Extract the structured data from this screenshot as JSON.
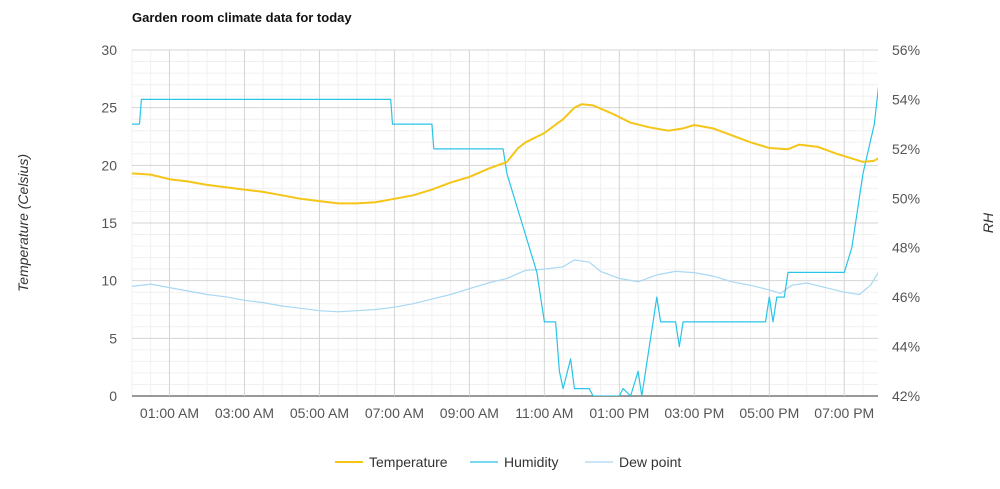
{
  "chart_data": {
    "type": "line",
    "title": "Garden room climate data for today",
    "ylabel": "Temperature (Celsius)",
    "y2label": "RH",
    "ylim": [
      0,
      30
    ],
    "y2lim": [
      42,
      56
    ],
    "xlim": [
      0.0,
      19.9
    ],
    "left_ticks": [
      "0",
      "5",
      "10",
      "15",
      "20",
      "25",
      "30"
    ],
    "right_ticks": [
      "42%",
      "44%",
      "46%",
      "48%",
      "50%",
      "52%",
      "54%",
      "56%"
    ],
    "x_ticks": [
      {
        "value": 1,
        "label": "01:00 AM"
      },
      {
        "value": 3,
        "label": "03:00 AM"
      },
      {
        "value": 5,
        "label": "05:00 AM"
      },
      {
        "value": 7,
        "label": "07:00 AM"
      },
      {
        "value": 9,
        "label": "09:00 AM"
      },
      {
        "value": 11,
        "label": "11:00 AM"
      },
      {
        "value": 13,
        "label": "01:00 PM"
      },
      {
        "value": 15,
        "label": "03:00 PM"
      },
      {
        "value": 17,
        "label": "05:00 PM"
      },
      {
        "value": 19,
        "label": "07:00 PM"
      }
    ],
    "grid": true,
    "legend_position": "bottom",
    "series": [
      {
        "name": "Temperature",
        "axis": "left",
        "color": "#f5c518",
        "points": [
          [
            0.0,
            19.3
          ],
          [
            0.5,
            19.2
          ],
          [
            1.0,
            18.8
          ],
          [
            1.5,
            18.6
          ],
          [
            2.0,
            18.3
          ],
          [
            2.5,
            18.1
          ],
          [
            3.0,
            17.9
          ],
          [
            3.5,
            17.7
          ],
          [
            4.0,
            17.4
          ],
          [
            4.5,
            17.1
          ],
          [
            5.0,
            16.9
          ],
          [
            5.5,
            16.7
          ],
          [
            6.0,
            16.7
          ],
          [
            6.5,
            16.8
          ],
          [
            7.0,
            17.1
          ],
          [
            7.5,
            17.4
          ],
          [
            8.0,
            17.9
          ],
          [
            8.5,
            18.5
          ],
          [
            9.0,
            19.0
          ],
          [
            9.5,
            19.7
          ],
          [
            10.0,
            20.3
          ],
          [
            10.3,
            21.5
          ],
          [
            10.5,
            22.0
          ],
          [
            11.0,
            22.8
          ],
          [
            11.5,
            24.0
          ],
          [
            11.8,
            25.0
          ],
          [
            12.0,
            25.3
          ],
          [
            12.3,
            25.2
          ],
          [
            12.8,
            24.5
          ],
          [
            13.3,
            23.7
          ],
          [
            13.8,
            23.3
          ],
          [
            14.3,
            23.0
          ],
          [
            14.7,
            23.2
          ],
          [
            15.0,
            23.5
          ],
          [
            15.5,
            23.2
          ],
          [
            16.0,
            22.6
          ],
          [
            16.5,
            22.0
          ],
          [
            17.0,
            21.5
          ],
          [
            17.5,
            21.4
          ],
          [
            17.8,
            21.8
          ],
          [
            18.3,
            21.6
          ],
          [
            18.8,
            21.0
          ],
          [
            19.2,
            20.6
          ],
          [
            19.5,
            20.3
          ],
          [
            19.8,
            20.4
          ],
          [
            20.0,
            20.8
          ],
          [
            20.5,
            20.8
          ]
        ]
      },
      {
        "name": "Humidity",
        "axis": "right",
        "color": "#29c4e8",
        "points": [
          [
            0.0,
            53.0
          ],
          [
            0.2,
            53.0
          ],
          [
            0.25,
            54.0
          ],
          [
            6.9,
            54.0
          ],
          [
            6.95,
            53.0
          ],
          [
            8.0,
            53.0
          ],
          [
            8.05,
            52.0
          ],
          [
            9.9,
            52.0
          ],
          [
            10.0,
            51.0
          ],
          [
            10.2,
            50.0
          ],
          [
            10.4,
            49.0
          ],
          [
            10.6,
            48.0
          ],
          [
            10.8,
            47.0
          ],
          [
            10.9,
            46.0
          ],
          [
            11.0,
            45.0
          ],
          [
            11.3,
            45.0
          ],
          [
            11.4,
            43.0
          ],
          [
            11.5,
            42.3
          ],
          [
            11.7,
            43.5
          ],
          [
            11.8,
            42.3
          ],
          [
            12.2,
            42.3
          ],
          [
            12.3,
            42.0
          ],
          [
            13.0,
            42.0
          ],
          [
            13.1,
            42.3
          ],
          [
            13.3,
            42.0
          ],
          [
            13.5,
            43.0
          ],
          [
            13.6,
            42.0
          ],
          [
            13.8,
            44.0
          ],
          [
            13.9,
            45.0
          ],
          [
            14.0,
            46.0
          ],
          [
            14.1,
            45.0
          ],
          [
            14.5,
            45.0
          ],
          [
            14.6,
            44.0
          ],
          [
            14.7,
            45.0
          ],
          [
            16.9,
            45.0
          ],
          [
            17.0,
            46.0
          ],
          [
            17.1,
            45.0
          ],
          [
            17.2,
            46.0
          ],
          [
            17.4,
            46.0
          ],
          [
            17.5,
            47.0
          ],
          [
            19.0,
            47.0
          ],
          [
            19.2,
            48.0
          ],
          [
            19.5,
            51.0
          ],
          [
            19.8,
            53.0
          ],
          [
            19.95,
            55.0
          ],
          [
            20.1,
            54.0
          ],
          [
            20.3,
            52.0
          ],
          [
            20.6,
            52.0
          ],
          [
            20.7,
            51.0
          ],
          [
            20.8,
            51.0
          ]
        ]
      },
      {
        "name": "Dew point",
        "axis": "left",
        "color": "#a8d8f4",
        "points": [
          [
            0.0,
            9.5
          ],
          [
            0.5,
            9.7
          ],
          [
            1.0,
            9.4
          ],
          [
            1.5,
            9.1
          ],
          [
            2.0,
            8.8
          ],
          [
            2.5,
            8.6
          ],
          [
            3.0,
            8.3
          ],
          [
            3.5,
            8.1
          ],
          [
            4.0,
            7.8
          ],
          [
            4.5,
            7.6
          ],
          [
            5.0,
            7.4
          ],
          [
            5.5,
            7.3
          ],
          [
            6.0,
            7.4
          ],
          [
            6.5,
            7.5
          ],
          [
            7.0,
            7.7
          ],
          [
            7.5,
            8.0
          ],
          [
            8.0,
            8.4
          ],
          [
            8.5,
            8.8
          ],
          [
            9.0,
            9.3
          ],
          [
            9.5,
            9.8
          ],
          [
            10.0,
            10.2
          ],
          [
            10.5,
            10.9
          ],
          [
            11.0,
            11.0
          ],
          [
            11.5,
            11.2
          ],
          [
            11.8,
            11.8
          ],
          [
            12.2,
            11.6
          ],
          [
            12.5,
            10.8
          ],
          [
            13.0,
            10.2
          ],
          [
            13.5,
            9.9
          ],
          [
            14.0,
            10.5
          ],
          [
            14.5,
            10.8
          ],
          [
            15.0,
            10.7
          ],
          [
            15.5,
            10.4
          ],
          [
            16.0,
            9.9
          ],
          [
            16.5,
            9.6
          ],
          [
            17.0,
            9.2
          ],
          [
            17.3,
            8.9
          ],
          [
            17.6,
            9.6
          ],
          [
            18.0,
            9.8
          ],
          [
            18.5,
            9.4
          ],
          [
            19.0,
            9.0
          ],
          [
            19.4,
            8.8
          ],
          [
            19.7,
            9.6
          ],
          [
            20.0,
            11.2
          ],
          [
            20.4,
            10.9
          ],
          [
            20.8,
            10.4
          ]
        ]
      }
    ]
  }
}
